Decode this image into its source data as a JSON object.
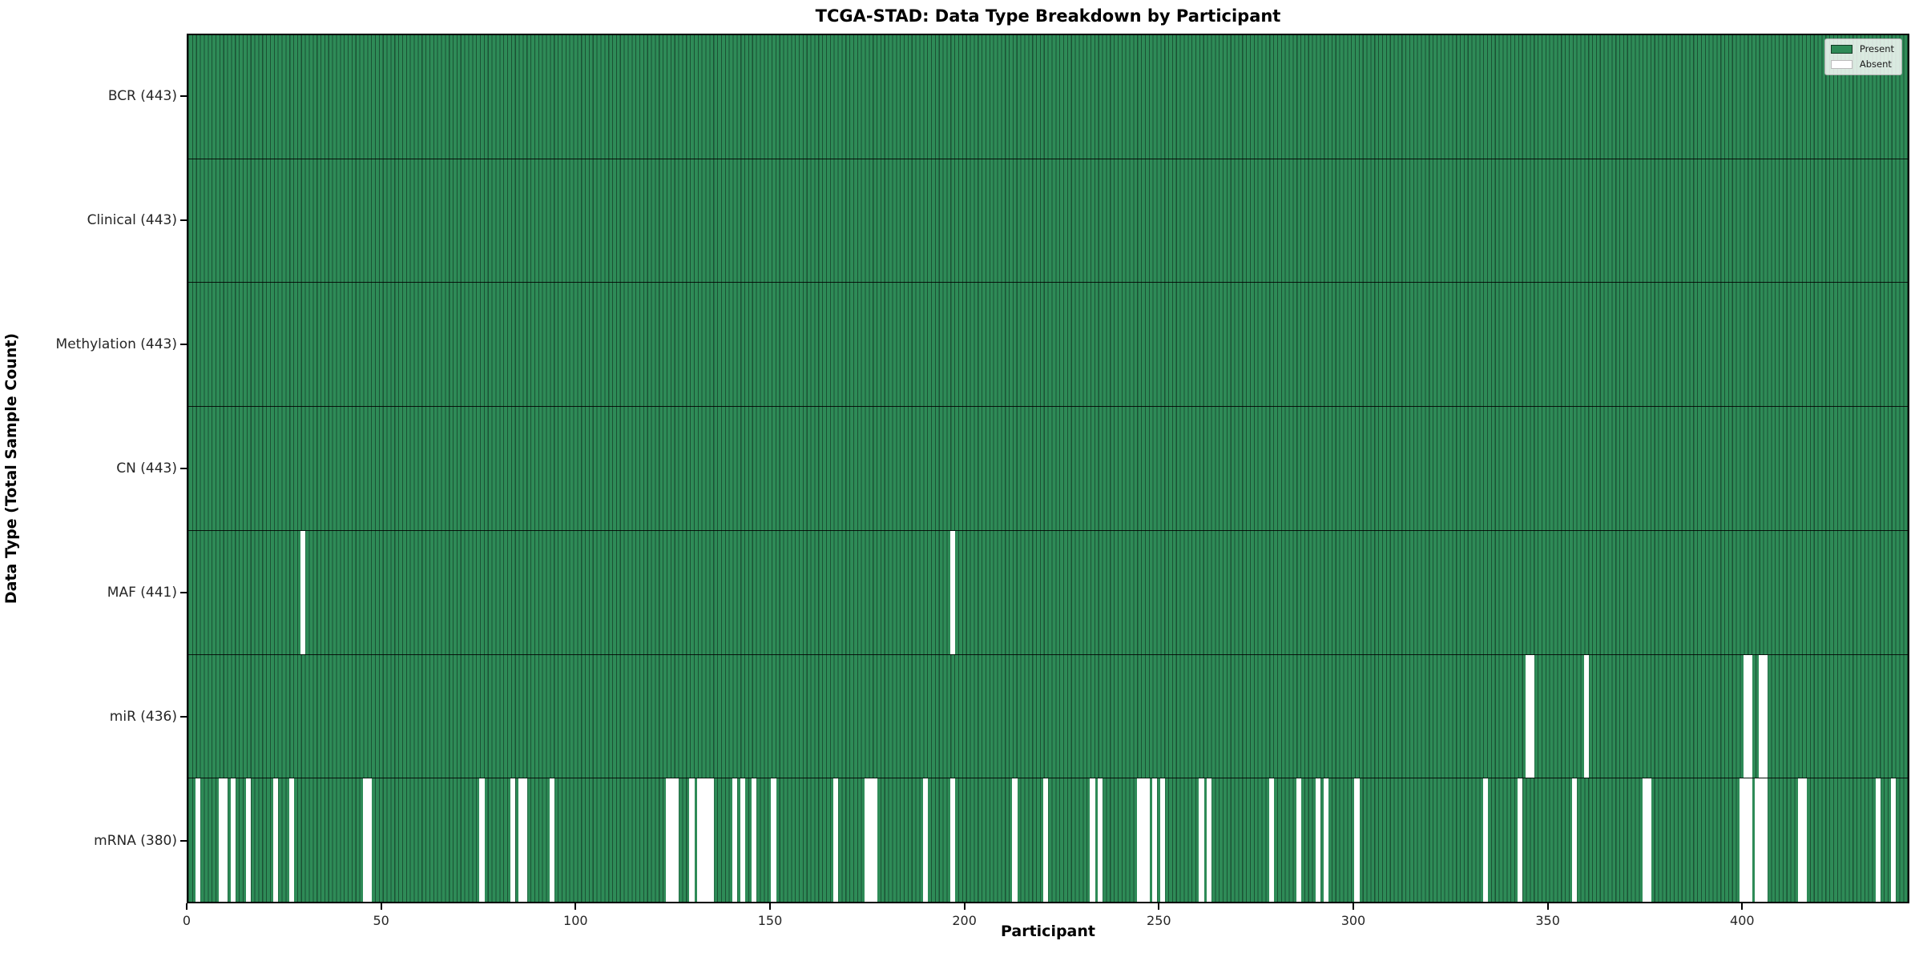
{
  "title": "TCGA-STAD: Data Type Breakdown by Participant",
  "colors": {
    "present": "#2e8b57",
    "absent": "#ffffff",
    "bar_edge": "#1b5234",
    "legend_present_border": "#123a23",
    "legend_absent_border": "#bbbbbb"
  },
  "legend": {
    "present_label": "Present",
    "absent_label": "Absent"
  },
  "chart_data": {
    "type": "heatmap",
    "title": "TCGA-STAD: Data Type Breakdown by Participant",
    "xlabel": "Participant",
    "ylabel": "Data Type (Total Sample Count)",
    "legend": [
      "Present",
      "Absent"
    ],
    "legend_position": "upper right",
    "x_range": [
      0,
      443
    ],
    "n_participants": 443,
    "x_ticks": [
      0,
      50,
      100,
      150,
      200,
      250,
      300,
      350,
      400
    ],
    "rows": [
      {
        "data_type": "BCR",
        "label": "BCR (443)",
        "present_count": 443,
        "absent_participants": []
      },
      {
        "data_type": "Clinical",
        "label": "Clinical (443)",
        "present_count": 443,
        "absent_participants": []
      },
      {
        "data_type": "Methylation",
        "label": "Methylation (443)",
        "present_count": 443,
        "absent_participants": []
      },
      {
        "data_type": "CN",
        "label": "CN (443)",
        "present_count": 443,
        "absent_participants": []
      },
      {
        "data_type": "MAF",
        "label": "MAF (441)",
        "present_count": 441,
        "absent_participants": [
          29,
          196
        ]
      },
      {
        "data_type": "miR",
        "label": "miR (436)",
        "present_count": 436,
        "absent_participants": [
          344,
          345,
          359,
          400,
          401,
          404,
          405
        ]
      },
      {
        "data_type": "mRNA",
        "label": "mRNA (380)",
        "present_count": 380,
        "absent_participants": [
          2,
          8,
          9,
          11,
          15,
          22,
          26,
          45,
          46,
          75,
          83,
          85,
          86,
          93,
          123,
          124,
          125,
          129,
          131,
          132,
          133,
          134,
          140,
          142,
          145,
          150,
          166,
          174,
          175,
          176,
          189,
          196,
          212,
          220,
          232,
          234,
          244,
          245,
          246,
          248,
          250,
          260,
          262,
          278,
          285,
          290,
          292,
          300,
          333,
          342,
          356,
          374,
          375,
          399,
          400,
          401,
          403,
          404,
          405,
          414,
          415,
          434,
          438
        ]
      }
    ]
  }
}
